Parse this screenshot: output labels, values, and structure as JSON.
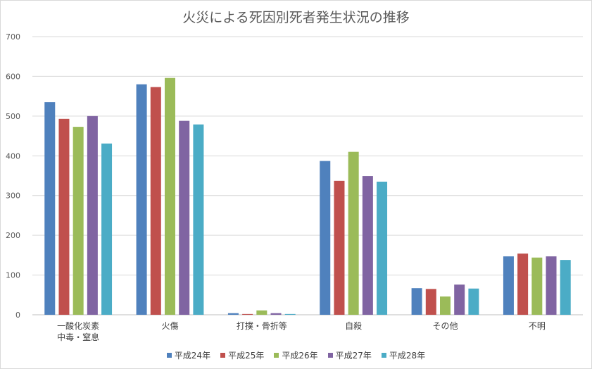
{
  "chart_data": {
    "type": "bar",
    "title": "火災による死因別死者発生状況の推移",
    "categories": [
      [
        "一酸化炭素",
        "中毒・窒息"
      ],
      [
        "火傷"
      ],
      [
        "打撲・骨折等"
      ],
      [
        "自殺"
      ],
      [
        "その他"
      ],
      [
        "不明"
      ]
    ],
    "series": [
      {
        "name": "平成24年",
        "color": "#4f81bd",
        "values": [
          535,
          580,
          4,
          387,
          67,
          147
        ]
      },
      {
        "name": "平成25年",
        "color": "#c0504d",
        "values": [
          493,
          573,
          2,
          337,
          65,
          154
        ]
      },
      {
        "name": "平成26年",
        "color": "#9bbb59",
        "values": [
          473,
          596,
          11,
          410,
          46,
          144
        ]
      },
      {
        "name": "平成27年",
        "color": "#8064a2",
        "values": [
          500,
          488,
          4,
          349,
          76,
          147
        ]
      },
      {
        "name": "平成28年",
        "color": "#4bacc6",
        "values": [
          431,
          479,
          2,
          335,
          66,
          138
        ]
      }
    ],
    "ylim": [
      0,
      700
    ],
    "yticks": [
      0,
      100,
      200,
      300,
      400,
      500,
      600,
      700
    ],
    "grid": true,
    "legend_position": "bottom"
  }
}
